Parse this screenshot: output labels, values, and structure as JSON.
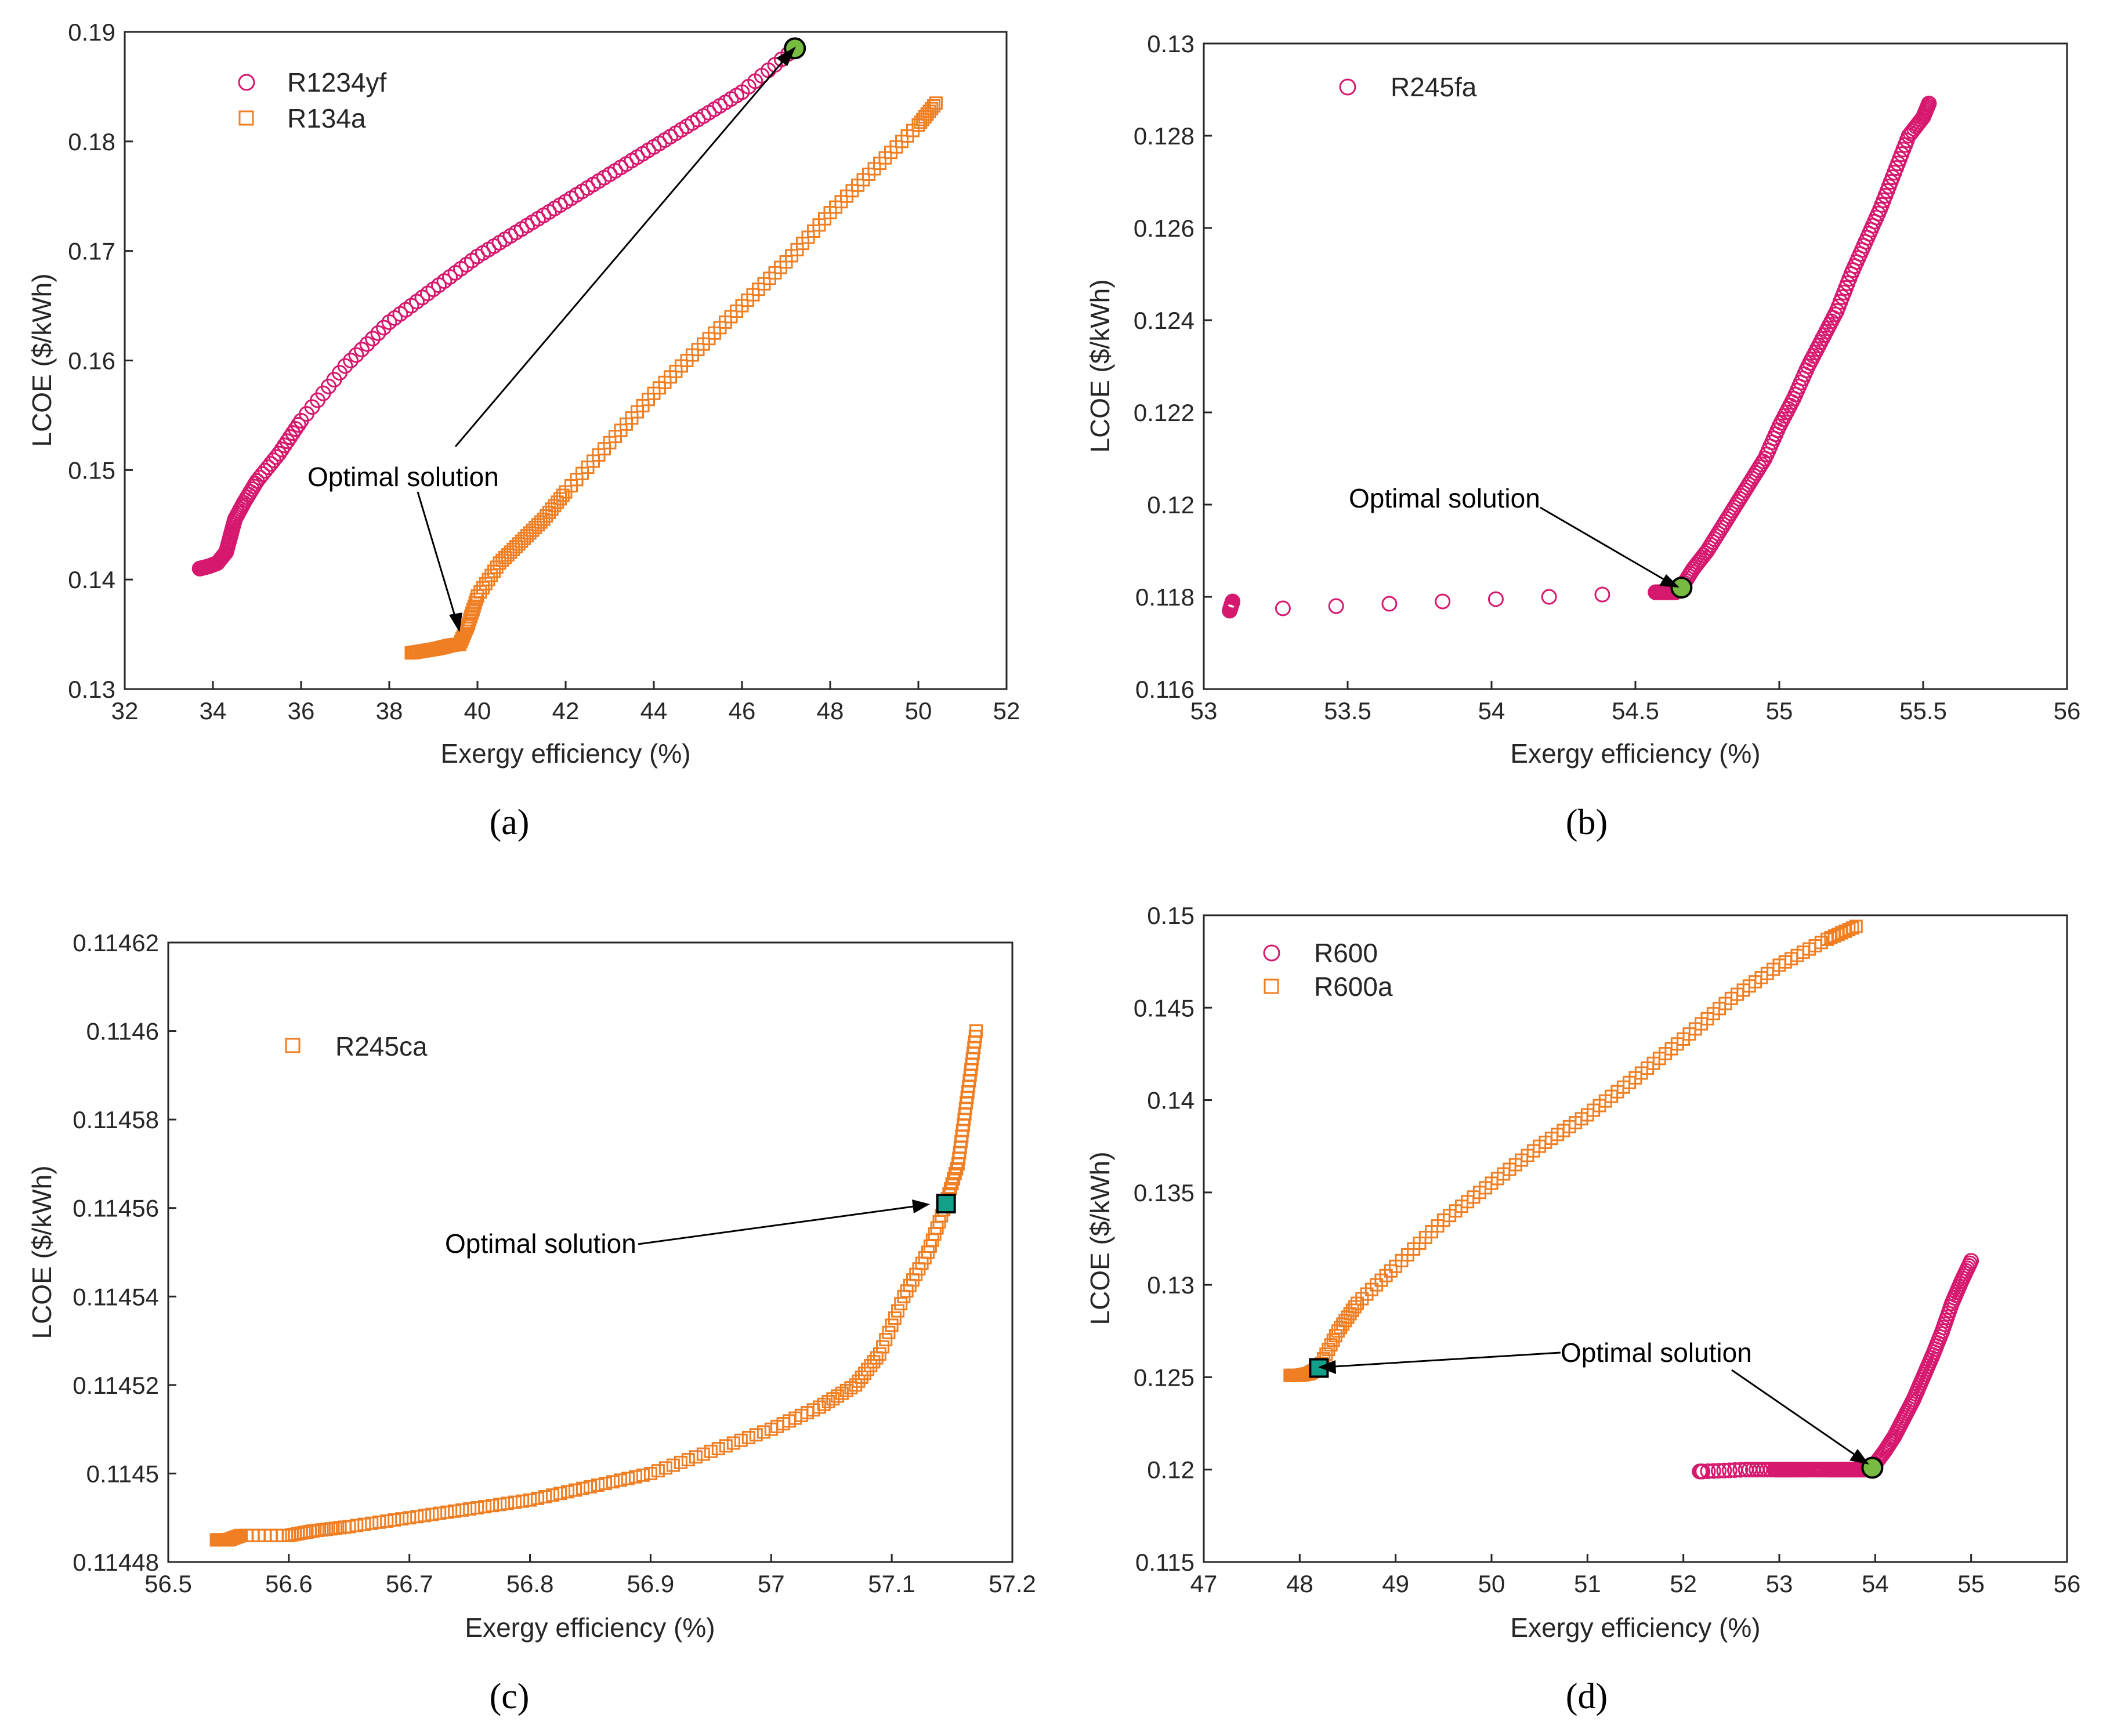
{
  "figure": {
    "colors": {
      "circle": "#d6186e",
      "square": "#f07f24",
      "opt_circle": "#77bb41",
      "opt_square": "#12a08a",
      "axis": "#262626"
    }
  },
  "chart_data": [
    {
      "type": "scatter",
      "panel_label": "(a)",
      "xlabel": "Exergy efficiency (%)",
      "ylabel": "LCOE ($/kWh)",
      "xlim": [
        32,
        52
      ],
      "ylim": [
        0.13,
        0.19
      ],
      "xticks": [
        "32",
        "34",
        "36",
        "38",
        "40",
        "42",
        "44",
        "46",
        "48",
        "50",
        "52"
      ],
      "yticks": [
        "0.13",
        "0.14",
        "0.15",
        "0.16",
        "0.17",
        "0.18",
        "0.19"
      ],
      "legend": [
        {
          "name": "R1234yf",
          "marker": "circle"
        },
        {
          "name": "R134a",
          "marker": "square"
        }
      ],
      "series": [
        {
          "name": "R1234yf",
          "marker": "circle",
          "x": [
            33.7,
            33.9,
            34.1,
            34.3,
            34.4,
            34.5,
            34.7,
            35.0,
            35.5,
            36.0,
            37.0,
            38.0,
            39.0,
            40.0,
            41.0,
            42.0,
            43.0,
            44.0,
            45.0,
            46.0,
            47.2
          ],
          "y": [
            0.141,
            0.1412,
            0.1415,
            0.1425,
            0.144,
            0.1455,
            0.147,
            0.149,
            0.1515,
            0.1545,
            0.1595,
            0.1635,
            0.1665,
            0.1695,
            0.172,
            0.1745,
            0.177,
            0.1795,
            0.182,
            0.1845,
            0.1885
          ]
        },
        {
          "name": "R134a",
          "marker": "square",
          "x": [
            38.5,
            38.8,
            39.1,
            39.4,
            39.6,
            39.8,
            40.0,
            40.5,
            41.0,
            41.5,
            42.0,
            43.0,
            44.0,
            45.0,
            46.0,
            47.0,
            48.0,
            49.0,
            50.0,
            50.4
          ],
          "y": [
            0.1333,
            0.1335,
            0.1337,
            0.134,
            0.1341,
            0.136,
            0.1385,
            0.1415,
            0.1435,
            0.1455,
            0.148,
            0.1525,
            0.157,
            0.161,
            0.165,
            0.169,
            0.1735,
            0.1775,
            0.1815,
            0.1835
          ]
        }
      ],
      "optimal": {
        "x": 47.2,
        "y": 0.1885,
        "marker": "circle"
      },
      "annotation": {
        "text": "Optimal solution",
        "target": "both"
      }
    },
    {
      "type": "scatter",
      "panel_label": "(b)",
      "xlabel": "Exergy efficiency (%)",
      "ylabel": "LCOE ($/kWh)",
      "xlim": [
        53,
        56
      ],
      "ylim": [
        0.116,
        0.13
      ],
      "xticks": [
        "53",
        "53.5",
        "54",
        "54.5",
        "55",
        "55.5",
        "56"
      ],
      "yticks": [
        "0.116",
        "0.118",
        "0.12",
        "0.122",
        "0.124",
        "0.126",
        "0.128",
        "0.13"
      ],
      "legend": [
        {
          "name": "R245fa",
          "marker": "circle"
        }
      ],
      "series": [
        {
          "name": "R245fa",
          "marker": "circle",
          "x": [
            53.1,
            53.09,
            54.57,
            54.6,
            54.62,
            54.64,
            54.66,
            54.7,
            54.75,
            54.8,
            54.85,
            54.9,
            54.95,
            55.0,
            55.05,
            55.1,
            55.15,
            55.2,
            55.25,
            55.3,
            55.35,
            55.4,
            55.45,
            55.5,
            55.52
          ],
          "y": [
            0.1179,
            0.1177,
            0.1181,
            0.1181,
            0.1181,
            0.1181,
            0.1182,
            0.1186,
            0.119,
            0.1195,
            0.12,
            0.1205,
            0.121,
            0.1217,
            0.1223,
            0.123,
            0.1236,
            0.1242,
            0.125,
            0.1257,
            0.1264,
            0.1272,
            0.128,
            0.1284,
            0.1287
          ]
        }
      ],
      "optimal": {
        "x": 54.66,
        "y": 0.1182,
        "marker": "circle"
      },
      "annotation": {
        "text": "Optimal solution"
      }
    },
    {
      "type": "scatter",
      "panel_label": "(c)",
      "xlabel": "Exergy efficiency (%)",
      "ylabel": "LCOE ($/kWh)",
      "xlim": [
        56.5,
        57.2
      ],
      "ylim": [
        0.11448,
        0.11462
      ],
      "xticks": [
        "56.5",
        "56.6",
        "56.7",
        "56.8",
        "56.9",
        "57",
        "57.1",
        "57.2"
      ],
      "yticks": [
        "0.11448",
        "0.1145",
        "0.11452",
        "0.11454",
        "0.11456",
        "0.11458",
        "0.1146",
        "0.11462"
      ],
      "legend": [
        {
          "name": "R245ca",
          "marker": "square"
        }
      ],
      "series": [
        {
          "name": "R245ca",
          "marker": "square",
          "x": [
            56.54,
            56.55,
            56.56,
            56.6,
            56.62,
            56.65,
            56.7,
            56.75,
            56.8,
            56.85,
            56.9,
            56.95,
            57.0,
            57.04,
            57.07,
            57.09,
            57.11,
            57.13,
            57.145,
            57.155,
            57.16,
            57.165,
            57.17
          ],
          "y": [
            0.114485,
            0.114485,
            0.114486,
            0.114486,
            0.114487,
            0.114488,
            0.11449,
            0.114492,
            0.114494,
            0.114497,
            0.1145,
            0.114505,
            0.11451,
            0.114515,
            0.11452,
            0.114527,
            0.11454,
            0.11455,
            0.114561,
            0.11457,
            0.11458,
            0.11459,
            0.1146
          ]
        }
      ],
      "optimal": {
        "x": 57.145,
        "y": 0.114561,
        "marker": "square"
      },
      "annotation": {
        "text": "Optimal solution"
      }
    },
    {
      "type": "scatter",
      "panel_label": "(d)",
      "xlabel": "Exergy efficiency (%)",
      "ylabel": "LCOE ($/kWh)",
      "xlim": [
        47,
        56
      ],
      "ylim": [
        0.115,
        0.15
      ],
      "xticks": [
        "47",
        "48",
        "49",
        "50",
        "51",
        "52",
        "53",
        "54",
        "55",
        "56"
      ],
      "yticks": [
        "0.115",
        "0.12",
        "0.125",
        "0.13",
        "0.135",
        "0.14",
        "0.145",
        "0.15"
      ],
      "legend": [
        {
          "name": "R600",
          "marker": "circle"
        },
        {
          "name": "R600a",
          "marker": "square"
        }
      ],
      "series": [
        {
          "name": "R600",
          "marker": "circle",
          "x": [
            52.17,
            52.2,
            52.65,
            52.95,
            53.05,
            53.15,
            53.3,
            53.5,
            53.6,
            53.7,
            53.8,
            53.9,
            53.97,
            54.1,
            54.2,
            54.3,
            54.4,
            54.5,
            54.6,
            54.7,
            54.8,
            54.9,
            55.0
          ],
          "y": [
            0.1199,
            0.1199,
            0.12,
            0.12,
            0.12,
            0.12,
            0.12,
            0.12,
            0.12,
            0.12,
            0.12,
            0.12,
            0.1201,
            0.121,
            0.1218,
            0.1228,
            0.1238,
            0.125,
            0.1262,
            0.1275,
            0.129,
            0.1302,
            0.1313
          ]
        },
        {
          "name": "R600a",
          "marker": "square",
          "x": [
            47.9,
            48.0,
            48.1,
            48.2,
            48.4,
            48.6,
            49.0,
            49.5,
            50.0,
            50.5,
            51.0,
            51.5,
            52.0,
            52.5,
            53.0,
            53.5,
            53.8
          ],
          "y": [
            0.1251,
            0.1251,
            0.1252,
            0.1255,
            0.1275,
            0.129,
            0.131,
            0.1335,
            0.1355,
            0.1375,
            0.1392,
            0.1412,
            0.1433,
            0.1455,
            0.1473,
            0.1487,
            0.1494
          ]
        }
      ],
      "optimal": {
        "x": 53.97,
        "y": 0.1201,
        "marker": "circle"
      },
      "optimal2": {
        "x": 48.2,
        "y": 0.1255,
        "marker": "square"
      },
      "annotation": {
        "text": "Optimal solution"
      }
    }
  ]
}
